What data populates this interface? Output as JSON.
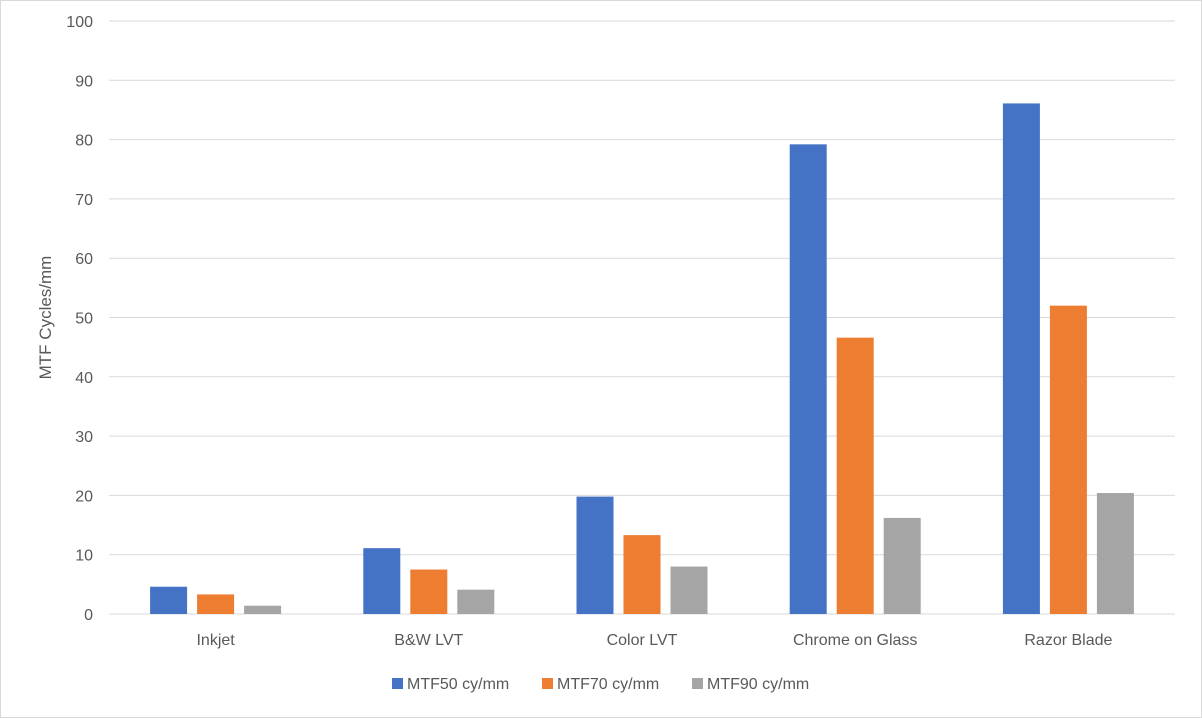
{
  "chart_data": {
    "type": "bar",
    "title": "",
    "xlabel": "",
    "ylabel": "MTF Cycles/mm",
    "ylim": [
      0,
      100
    ],
    "yticks": [
      0,
      10,
      20,
      30,
      40,
      50,
      60,
      70,
      80,
      90,
      100
    ],
    "grid": true,
    "legend_position": "bottom",
    "categories": [
      "Inkjet",
      "B&W LVT",
      "Color LVT",
      "Chrome on Glass",
      "Razor Blade"
    ],
    "series": [
      {
        "name": "MTF50 cy/mm",
        "color": "#4472C4",
        "values": [
          4.6,
          11.1,
          19.8,
          79.2,
          86.1
        ]
      },
      {
        "name": "MTF70 cy/mm",
        "color": "#ED7D31",
        "values": [
          3.3,
          7.5,
          13.3,
          46.6,
          52.0
        ]
      },
      {
        "name": "MTF90 cy/mm",
        "color": "#A5A5A5",
        "values": [
          1.4,
          4.1,
          8.0,
          16.2,
          20.4
        ]
      }
    ]
  }
}
